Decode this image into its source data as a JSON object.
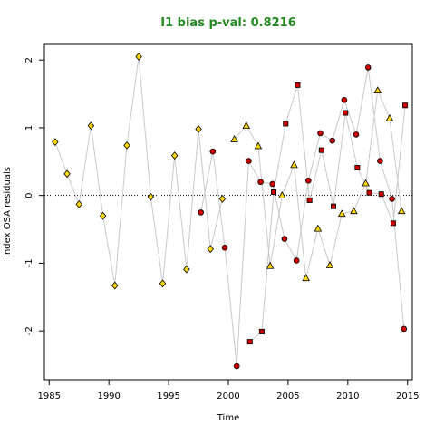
{
  "chart_data": {
    "type": "scatter",
    "title": "I1 bias p-val: 0.8216",
    "xlabel": "Time",
    "ylabel": "Index OSA residuals",
    "xlim": [
      1984.6,
      2015.4
    ],
    "ylim": [
      -2.72,
      2.23
    ],
    "xticks": [
      1985,
      1990,
      1995,
      2000,
      2005,
      2010,
      2015
    ],
    "yticks": [
      -2,
      -1,
      0,
      1,
      2
    ],
    "reference_line": {
      "y": 0,
      "style": "dotted"
    },
    "grid": false,
    "colors": {
      "title": "#228B22",
      "diamond_fill": "#FFD700",
      "triangle_fill": "#FFD700",
      "circle_fill": "#CC0000",
      "square_fill": "#CC0000",
      "connector": "#C8C8C8"
    },
    "series": [
      {
        "marker": "diamond",
        "points": [
          [
            1985.5,
            0.79
          ],
          [
            1986.5,
            0.32
          ],
          [
            1987.5,
            -0.13
          ],
          [
            1988.5,
            1.03
          ],
          [
            1989.5,
            -0.3
          ],
          [
            1990.5,
            -1.33
          ],
          [
            1991.5,
            0.74
          ],
          [
            1992.5,
            2.05
          ],
          [
            1993.5,
            -0.02
          ],
          [
            1994.5,
            -1.3
          ],
          [
            1995.5,
            0.59
          ],
          [
            1996.5,
            -1.09
          ],
          [
            1997.5,
            0.98
          ],
          [
            1998.5,
            -0.79
          ],
          [
            1999.5,
            -0.05
          ]
        ]
      },
      {
        "marker": "triangle",
        "points": [
          [
            2000.5,
            0.83
          ],
          [
            2001.5,
            1.03
          ],
          [
            2002.5,
            0.73
          ],
          [
            2003.5,
            -1.04
          ],
          [
            2004.5,
            0.0
          ],
          [
            2005.5,
            0.45
          ],
          [
            2006.5,
            -1.22
          ],
          [
            2007.5,
            -0.49
          ],
          [
            2008.5,
            -1.03
          ],
          [
            2009.5,
            -0.27
          ],
          [
            2010.5,
            -0.23
          ],
          [
            2011.5,
            0.18
          ],
          [
            2012.5,
            1.55
          ],
          [
            2013.5,
            1.14
          ],
          [
            2014.5,
            -0.23
          ]
        ]
      },
      {
        "marker": "circle",
        "points": [
          [
            1997.7,
            -0.25
          ],
          [
            1998.7,
            0.65
          ],
          [
            1999.7,
            -0.77
          ],
          [
            2000.7,
            -2.52
          ],
          [
            2001.7,
            0.51
          ],
          [
            2002.7,
            0.2
          ],
          [
            2003.7,
            0.17
          ],
          [
            2004.7,
            -0.64
          ],
          [
            2005.7,
            -0.96
          ],
          [
            2006.7,
            0.22
          ],
          [
            2007.7,
            0.92
          ],
          [
            2008.7,
            0.81
          ],
          [
            2009.7,
            1.41
          ],
          [
            2010.7,
            0.9
          ],
          [
            2011.7,
            1.89
          ],
          [
            2012.7,
            0.51
          ],
          [
            2013.7,
            -0.05
          ],
          [
            2014.7,
            -1.97
          ]
        ]
      },
      {
        "marker": "square",
        "points": [
          [
            2001.8,
            -2.16
          ],
          [
            2002.8,
            -2.01
          ],
          [
            2003.8,
            0.05
          ],
          [
            2004.8,
            1.06
          ],
          [
            2005.8,
            1.63
          ],
          [
            2006.8,
            -0.07
          ],
          [
            2007.8,
            0.67
          ],
          [
            2008.8,
            -0.16
          ],
          [
            2009.8,
            1.22
          ],
          [
            2010.8,
            0.41
          ],
          [
            2011.8,
            0.04
          ],
          [
            2012.8,
            0.02
          ],
          [
            2013.8,
            -0.41
          ],
          [
            2014.8,
            1.33
          ]
        ]
      }
    ]
  }
}
